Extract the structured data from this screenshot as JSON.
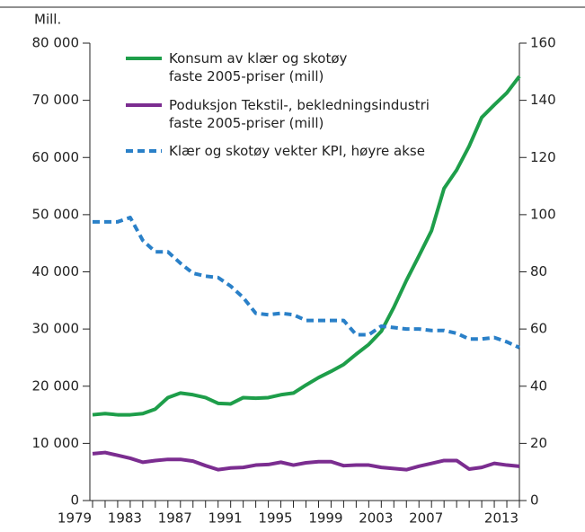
{
  "chart_data": {
    "type": "line",
    "y_label": "Mill.",
    "x": [
      1979,
      1980,
      1981,
      1982,
      1983,
      1984,
      1985,
      1986,
      1987,
      1988,
      1989,
      1990,
      1991,
      1992,
      1993,
      1994,
      1995,
      1996,
      1997,
      1998,
      1999,
      2000,
      2001,
      2002,
      2003,
      2004,
      2005,
      2006,
      2007,
      2008,
      2009,
      2010,
      2011,
      2012,
      2013
    ],
    "xlim": [
      1979,
      2013
    ],
    "xticks": [
      1979,
      1983,
      1987,
      1991,
      1995,
      1999,
      2003,
      2007,
      2013
    ],
    "ylim": [
      0,
      80000
    ],
    "yticks": [
      0,
      {
        "value": 10000,
        "label": "10 000"
      },
      {
        "value": 20000,
        "label": "20 000"
      },
      {
        "value": 30000,
        "label": "30 000"
      },
      {
        "value": 40000,
        "label": "40 000"
      },
      {
        "value": 50000,
        "label": "50 000"
      },
      {
        "value": 60000,
        "label": "60 000"
      },
      {
        "value": 70000,
        "label": "70 000"
      },
      {
        "value": 80000,
        "label": "80 000"
      }
    ],
    "y2lim": [
      0,
      160
    ],
    "y2ticks": [
      0,
      20,
      40,
      60,
      80,
      100,
      120,
      140,
      160
    ],
    "grid": false,
    "legend": "top-left",
    "series": [
      {
        "name": "Konsum av klær og skotøy\nfaste 2005-priser (mill)",
        "color": "#1e9e4a",
        "style": "solid",
        "values": [
          15000,
          15200,
          15000,
          15000,
          15200,
          16000,
          18000,
          18800,
          18500,
          18000,
          17000,
          16900,
          18000,
          17900,
          18000,
          18500,
          18800,
          20200,
          21500,
          22600,
          23800,
          25600,
          27300,
          29600,
          33800,
          38500,
          42800,
          47200,
          54600,
          57800,
          62000,
          67000,
          69200,
          71300,
          74200
        ]
      },
      {
        "name": "Poduksjon Tekstil-, bekledningsindustri\nfaste 2005-priser (mill)",
        "color": "#7b2d90",
        "style": "solid",
        "values": [
          8200,
          8400,
          7900,
          7400,
          6700,
          7000,
          7200,
          7200,
          6900,
          6100,
          5400,
          5700,
          5800,
          6200,
          6300,
          6700,
          6200,
          6600,
          6800,
          6800,
          6100,
          6200,
          6200,
          5800,
          5600,
          5400,
          6000,
          6500,
          7000,
          7000,
          5500,
          5800,
          6500,
          6200,
          6000
        ]
      },
      {
        "name": "Klær og skotøy vekter KPI, høyre akse",
        "color": "#2a80c8",
        "style": "dashed",
        "axis": "y2",
        "values": [
          97.5,
          97.5,
          97.5,
          99,
          91,
          87,
          87,
          83,
          79.5,
          78.5,
          78,
          75,
          71,
          65.5,
          65,
          65.5,
          65,
          63,
          63,
          63,
          63,
          58,
          58,
          61,
          60.5,
          60,
          60,
          59.5,
          59.5,
          58.5,
          56.5,
          56.5,
          57,
          55.5,
          53.5
        ]
      }
    ]
  }
}
